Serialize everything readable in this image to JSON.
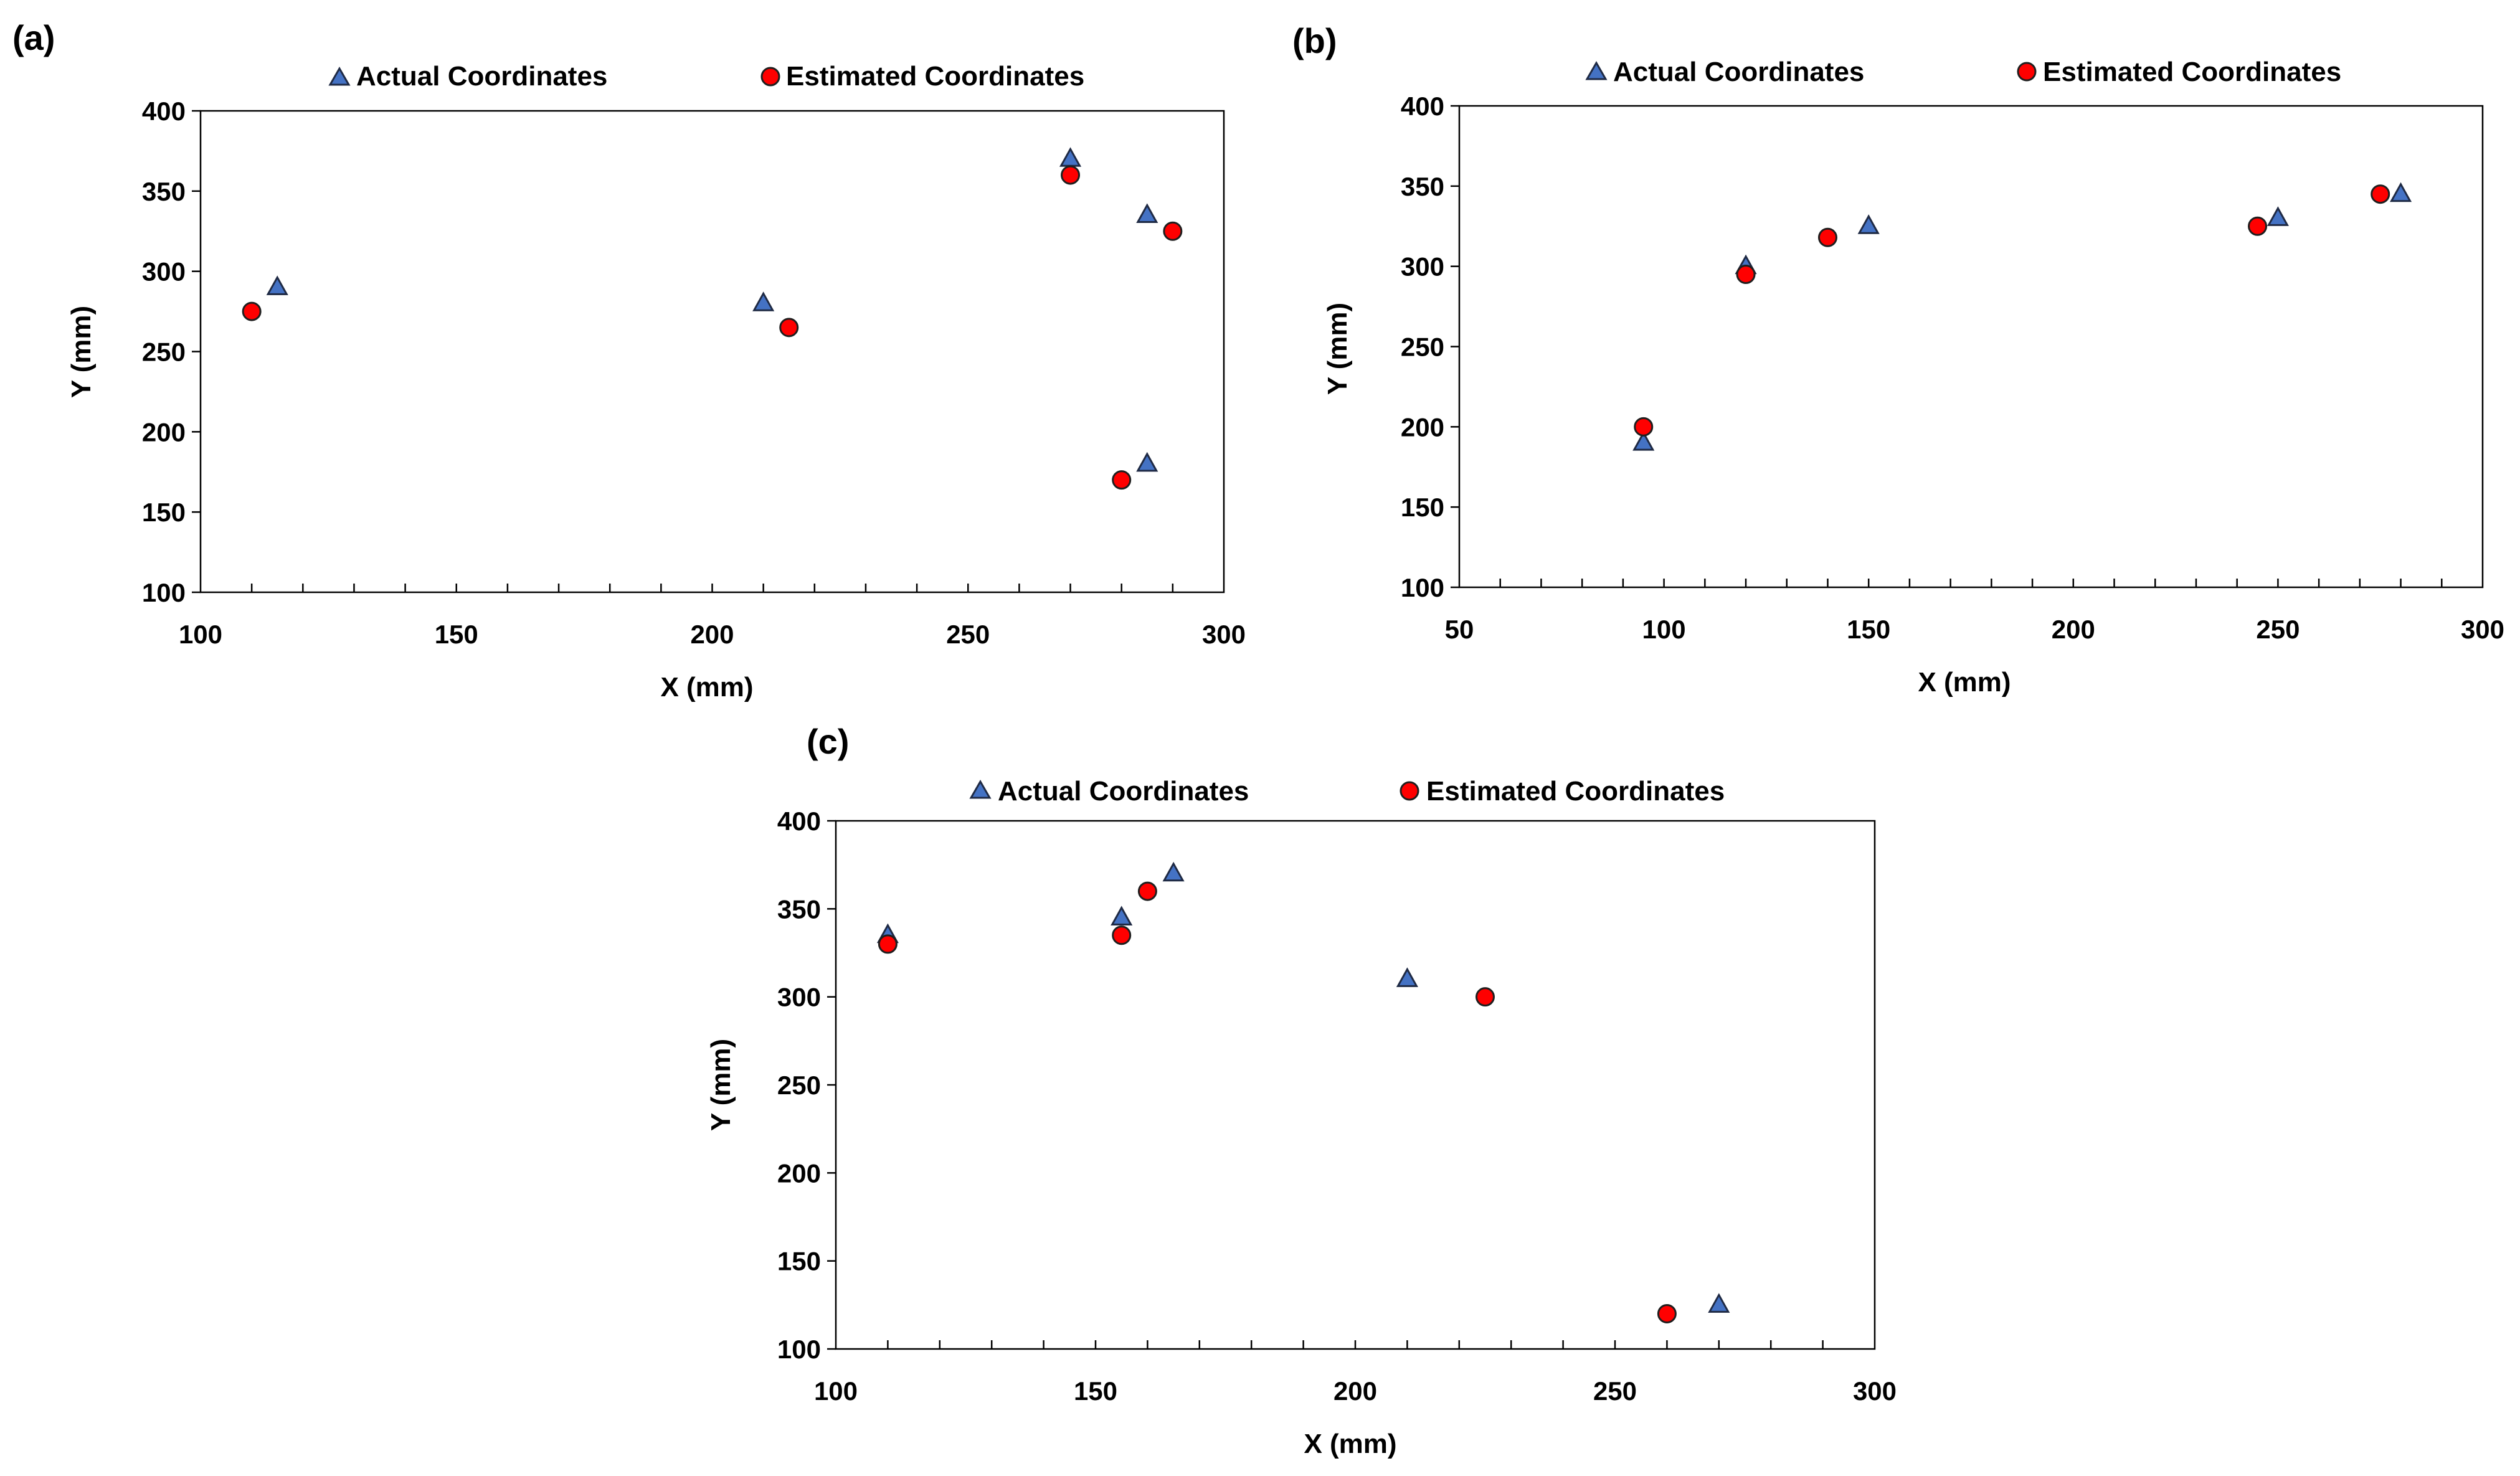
{
  "chart_data": [
    {
      "type": "scatter",
      "panel": "(a)",
      "title": "",
      "xlabel": "X (mm)",
      "ylabel": "Y (mm)",
      "xlim": [
        100,
        300
      ],
      "ylim": [
        100,
        400
      ],
      "xticks": [
        100,
        150,
        200,
        250,
        300
      ],
      "yticks": [
        100,
        150,
        200,
        250,
        300,
        350,
        400
      ],
      "x_minor_step": 10,
      "legend_position": "top",
      "series": [
        {
          "name": "Actual Coordinates",
          "marker": "triangle",
          "color": "#4472C4",
          "x": [
            115,
            210,
            270,
            285,
            285
          ],
          "y": [
            290,
            280,
            370,
            335,
            180
          ]
        },
        {
          "name": "Estimated Coordinates",
          "marker": "circle",
          "color": "#FF0000",
          "x": [
            110,
            215,
            270,
            290,
            280
          ],
          "y": [
            275,
            265,
            360,
            325,
            170
          ]
        }
      ]
    },
    {
      "type": "scatter",
      "panel": "(b)",
      "title": "",
      "xlabel": "X (mm)",
      "ylabel": "Y (mm)",
      "xlim": [
        50,
        300
      ],
      "ylim": [
        100,
        400
      ],
      "xticks": [
        50,
        100,
        150,
        200,
        250,
        300
      ],
      "yticks": [
        100,
        150,
        200,
        250,
        300,
        350,
        400
      ],
      "x_minor_step": 10,
      "legend_position": "top",
      "series": [
        {
          "name": "Actual Coordinates",
          "marker": "triangle",
          "color": "#4472C4",
          "x": [
            95,
            120,
            150,
            250,
            280
          ],
          "y": [
            190,
            300,
            325,
            330,
            345
          ]
        },
        {
          "name": "Estimated Coordinates",
          "marker": "circle",
          "color": "#FF0000",
          "x": [
            95,
            120,
            140,
            245,
            275
          ],
          "y": [
            200,
            295,
            318,
            325,
            345
          ]
        }
      ]
    },
    {
      "type": "scatter",
      "panel": "(c)",
      "title": "",
      "xlabel": "X (mm)",
      "ylabel": "Y (mm)",
      "xlim": [
        100,
        300
      ],
      "ylim": [
        100,
        400
      ],
      "xticks": [
        100,
        150,
        200,
        250,
        300
      ],
      "yticks": [
        100,
        150,
        200,
        250,
        300,
        350,
        400
      ],
      "x_minor_step": 10,
      "legend_position": "top",
      "series": [
        {
          "name": "Actual Coordinates",
          "marker": "triangle",
          "color": "#4472C4",
          "x": [
            110,
            155,
            165,
            210,
            270
          ],
          "y": [
            335,
            345,
            370,
            310,
            125
          ]
        },
        {
          "name": "Estimated Coordinates",
          "marker": "circle",
          "color": "#FF0000",
          "x": [
            110,
            155,
            160,
            225,
            260
          ],
          "y": [
            330,
            335,
            360,
            300,
            120
          ]
        }
      ]
    }
  ]
}
